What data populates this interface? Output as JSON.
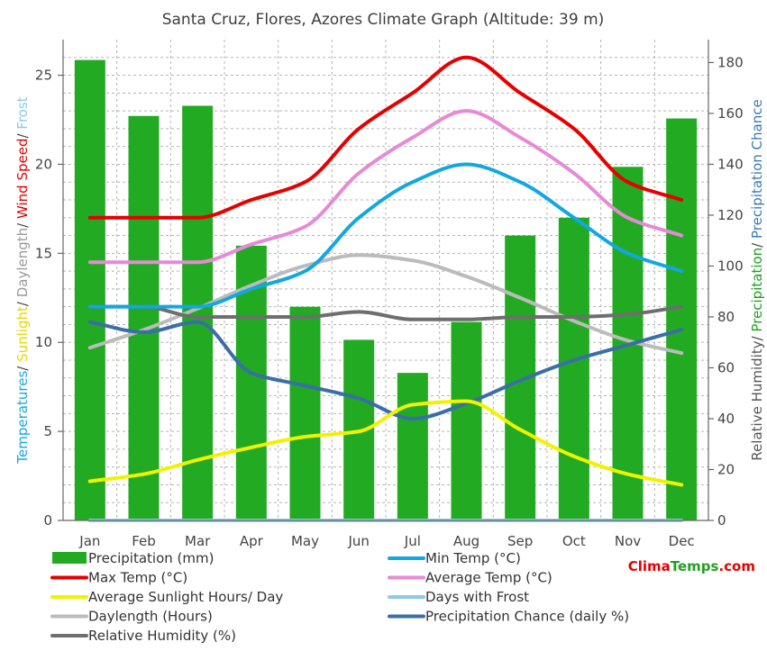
{
  "chart_data": {
    "type": "bar",
    "title": "Santa Cruz, Flores, Azores Climate Graph (Altitude: 39 m)",
    "categories": [
      "Jan",
      "Feb",
      "Mar",
      "Apr",
      "May",
      "Jun",
      "Jul",
      "Aug",
      "Sep",
      "Oct",
      "Nov",
      "Dec"
    ],
    "left_axis": {
      "label_parts": [
        {
          "text": "Temperatures",
          "color": "#1aa6e0"
        },
        {
          "text": "/ ",
          "color": "#444444"
        },
        {
          "text": "Sunlight",
          "color": "#e6d800"
        },
        {
          "text": "/ ",
          "color": "#444444"
        },
        {
          "text": "Daylength",
          "color": "#999999"
        },
        {
          "text": "/ ",
          "color": "#444444"
        },
        {
          "text": "Wind Speed",
          "color": "#e00000"
        },
        {
          "text": "/ ",
          "color": "#444444"
        },
        {
          "text": "Frost",
          "color": "#8ec9e6"
        }
      ],
      "ylim": [
        0,
        27
      ],
      "ticks": [
        0,
        5,
        10,
        15,
        20,
        25
      ]
    },
    "right_axis": {
      "label_parts": [
        {
          "text": "Relative Humidity",
          "color": "#555555"
        },
        {
          "text": "/ ",
          "color": "#444444"
        },
        {
          "text": "Precipitation",
          "color": "#22a022"
        },
        {
          "text": "/ ",
          "color": "#444444"
        },
        {
          "text": "Precipitation Chance",
          "color": "#3a7ab5"
        }
      ],
      "ylim": [
        0,
        189
      ],
      "ticks": [
        0,
        20,
        40,
        60,
        80,
        100,
        120,
        140,
        160,
        180
      ]
    },
    "bar_series": {
      "name": "Precipitation (mm)",
      "color": "#22aa22",
      "axis": "right",
      "values": [
        181,
        159,
        163,
        108,
        84,
        71,
        58,
        78,
        112,
        119,
        139,
        158
      ]
    },
    "line_series": [
      {
        "name": "Min Temp (°C)",
        "color": "#13a7e2",
        "axis": "left",
        "values": [
          12,
          12,
          12,
          13,
          14,
          17,
          19,
          20,
          19,
          17,
          15,
          14
        ]
      },
      {
        "name": "Max Temp (°C)",
        "color": "#e60000",
        "axis": "left",
        "values": [
          17,
          17,
          17,
          18,
          19,
          22,
          24,
          26,
          24,
          22,
          19,
          18
        ]
      },
      {
        "name": "Average Temp (°C)",
        "color": "#e68ad6",
        "axis": "left",
        "values": [
          14.5,
          14.5,
          14.5,
          15.5,
          16.5,
          19.5,
          21.5,
          23,
          21.5,
          19.5,
          17,
          16
        ]
      },
      {
        "name": "Average Sunlight Hours/ Day",
        "color": "#f2f200",
        "axis": "left",
        "values": [
          2.2,
          2.6,
          3.4,
          4.1,
          4.7,
          5,
          6.5,
          6.7,
          5.1,
          3.6,
          2.6,
          2
        ]
      },
      {
        "name": "Days with Frost",
        "color": "#8ec9e6",
        "axis": "left",
        "values": [
          0,
          0,
          0,
          0,
          0,
          0,
          0,
          0,
          0,
          0,
          0,
          0
        ]
      },
      {
        "name": "Daylength (Hours)",
        "color": "#bbbbbb",
        "axis": "left",
        "values": [
          9.7,
          10.7,
          11.9,
          13.2,
          14.3,
          14.9,
          14.6,
          13.7,
          12.5,
          11.2,
          10.1,
          9.4
        ]
      },
      {
        "name": "Precipitation Chance (daily %)",
        "color": "#3a6ea8",
        "axis": "right",
        "values": [
          78,
          74,
          78,
          58,
          53,
          48,
          40,
          46,
          55,
          63,
          69,
          75
        ]
      },
      {
        "name": "Relative Humidity (%)",
        "color": "#6e6e6e",
        "axis": "right",
        "values": [
          84,
          84,
          80,
          80,
          80,
          82,
          79,
          79,
          80,
          80,
          81,
          84
        ]
      }
    ],
    "legend": {
      "position": "bottom",
      "items": [
        {
          "name": "Precipitation (mm)",
          "symbol": "bar",
          "color": "#22aa22"
        },
        {
          "name": "Min Temp (°C)",
          "symbol": "line",
          "color": "#13a7e2"
        },
        {
          "name": "Max Temp (°C)",
          "symbol": "line",
          "color": "#e60000"
        },
        {
          "name": "Average Temp (°C)",
          "symbol": "line",
          "color": "#e68ad6"
        },
        {
          "name": "Average Sunlight Hours/ Day",
          "symbol": "line",
          "color": "#f2f200"
        },
        {
          "name": "Days with Frost",
          "symbol": "line",
          "color": "#8ec9e6"
        },
        {
          "name": "Daylength (Hours)",
          "symbol": "line",
          "color": "#bbbbbb"
        },
        {
          "name": "Precipitation Chance (daily %)",
          "symbol": "line",
          "color": "#3a6ea8"
        },
        {
          "name": "Relative Humidity (%)",
          "symbol": "line",
          "color": "#6e6e6e"
        }
      ]
    },
    "grid": true
  },
  "brand": {
    "part1": "Clima",
    "part2": "Temps",
    "part3": ".com",
    "color1": "#e60000",
    "color2": "#22a022"
  }
}
